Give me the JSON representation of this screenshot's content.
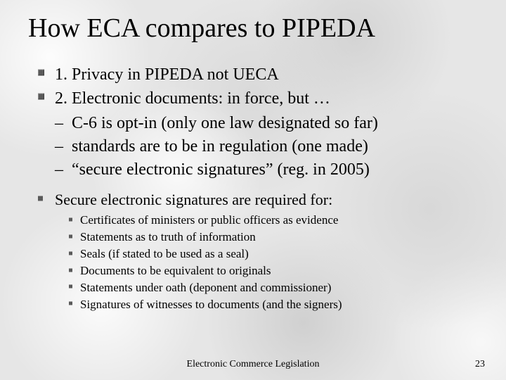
{
  "title": "How ECA compares to PIPEDA",
  "points": {
    "p1": "1. Privacy in PIPEDA not UECA",
    "p2": "2. Electronic documents: in force, but …",
    "p2_sub": {
      "a": "C-6 is opt-in (only one law designated so far)",
      "b": "standards are to be in regulation (one made)",
      "c": "“secure electronic signatures” (reg. in 2005)"
    },
    "p3": "Secure electronic signatures are required for:",
    "p3_sub": {
      "a": "Certificates of ministers or public officers as evidence",
      "b": "Statements as to truth of information",
      "c": "Seals (if stated to be used as a seal)",
      "d": "Documents to be equivalent to originals",
      "e": "Statements under oath (deponent and commissioner)",
      "f": "Signatures of  witnesses to documents (and the signers)"
    }
  },
  "footer": "Electronic Commerce Legislation",
  "page_number": "23",
  "style": {
    "title_fontsize_pt": 38,
    "body_fontsize_pt": 24,
    "sub_fontsize_pt": 17,
    "font_family": "Times New Roman",
    "text_color": "#000000",
    "bullet_color": "#5a5a5a",
    "background_base": "#e6e6e6"
  }
}
